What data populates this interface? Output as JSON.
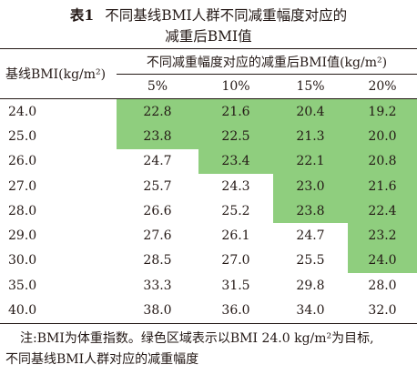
{
  "title": {
    "label": "表1",
    "line1": "不同基线BMI人群不同减重幅度对应的",
    "line2": "减重后BMI值"
  },
  "table": {
    "row_header": "基线BMI(kg/m²)",
    "group_header": "不同减重幅度对应的减重后BMI值(kg/m²)",
    "columns": [
      "5%",
      "10%",
      "15%",
      "20%"
    ],
    "rows": [
      {
        "bmi": "24.0",
        "values": [
          "22.8",
          "21.6",
          "20.4",
          "19.2"
        ],
        "green": [
          true,
          true,
          true,
          true
        ]
      },
      {
        "bmi": "25.0",
        "values": [
          "23.8",
          "22.5",
          "21.3",
          "20.0"
        ],
        "green": [
          true,
          true,
          true,
          true
        ]
      },
      {
        "bmi": "26.0",
        "values": [
          "24.7",
          "23.4",
          "22.1",
          "20.8"
        ],
        "green": [
          false,
          true,
          true,
          true
        ]
      },
      {
        "bmi": "27.0",
        "values": [
          "25.7",
          "24.3",
          "23.0",
          "21.6"
        ],
        "green": [
          false,
          false,
          true,
          true
        ]
      },
      {
        "bmi": "28.0",
        "values": [
          "26.6",
          "25.2",
          "23.8",
          "22.4"
        ],
        "green": [
          false,
          false,
          true,
          true
        ]
      },
      {
        "bmi": "29.0",
        "values": [
          "27.6",
          "26.1",
          "24.7",
          "23.2"
        ],
        "green": [
          false,
          false,
          false,
          true
        ]
      },
      {
        "bmi": "30.0",
        "values": [
          "28.5",
          "27.0",
          "25.5",
          "24.0"
        ],
        "green": [
          false,
          false,
          false,
          true
        ]
      },
      {
        "bmi": "35.0",
        "values": [
          "33.3",
          "31.5",
          "29.8",
          "28.0"
        ],
        "green": [
          false,
          false,
          false,
          false
        ]
      },
      {
        "bmi": "40.0",
        "values": [
          "38.0",
          "36.0",
          "34.0",
          "32.0"
        ],
        "green": [
          false,
          false,
          false,
          false
        ]
      }
    ]
  },
  "note": {
    "line1": "注:BMI为体重指数。绿色区域表示以BMI 24.0 kg/m²为目标,",
    "line2": "不同基线BMI人群对应的减重幅度"
  },
  "colors": {
    "highlight": "#8fce7e",
    "text": "#231815"
  }
}
